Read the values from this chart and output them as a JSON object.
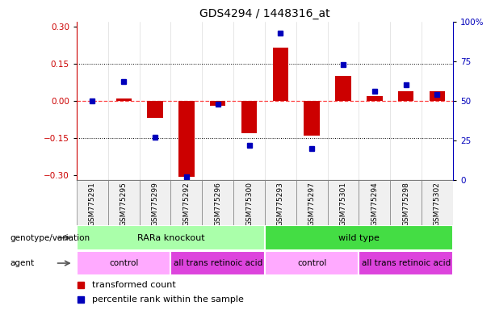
{
  "title": "GDS4294 / 1448316_at",
  "samples": [
    "GSM775291",
    "GSM775295",
    "GSM775299",
    "GSM775292",
    "GSM775296",
    "GSM775300",
    "GSM775293",
    "GSM775297",
    "GSM775301",
    "GSM775294",
    "GSM775298",
    "GSM775302"
  ],
  "red_bars": [
    0.0,
    0.01,
    -0.07,
    -0.305,
    -0.02,
    -0.13,
    0.215,
    -0.14,
    0.1,
    0.02,
    0.04,
    0.04
  ],
  "blue_dots_pct": [
    50,
    62,
    27,
    2,
    48,
    22,
    93,
    20,
    73,
    56,
    60,
    54
  ],
  "ylim_left": [
    -0.32,
    0.32
  ],
  "ylim_right": [
    0,
    105
  ],
  "yticks_left": [
    -0.3,
    -0.15,
    0.0,
    0.15,
    0.3
  ],
  "yticks_right": [
    0,
    25,
    50,
    75,
    100
  ],
  "ytick_labels_right": [
    "0",
    "25",
    "50",
    "75",
    "100%"
  ],
  "hlines_dotted": [
    0.15,
    -0.15
  ],
  "hline_zero_color": "#FF4444",
  "genotype_groups": [
    {
      "label": "RARa knockout",
      "start": 0,
      "end": 5,
      "color": "#AAFFAA"
    },
    {
      "label": "wild type",
      "start": 6,
      "end": 11,
      "color": "#44DD44"
    }
  ],
  "agent_groups": [
    {
      "label": "control",
      "start": 0,
      "end": 2,
      "color": "#FFAAFF"
    },
    {
      "label": "all trans retinoic acid",
      "start": 3,
      "end": 5,
      "color": "#DD44DD"
    },
    {
      "label": "control",
      "start": 6,
      "end": 8,
      "color": "#FFAAFF"
    },
    {
      "label": "all trans retinoic acid",
      "start": 9,
      "end": 11,
      "color": "#DD44DD"
    }
  ],
  "legend_red": "transformed count",
  "legend_blue": "percentile rank within the sample",
  "bar_color": "#CC0000",
  "dot_color": "#0000BB",
  "bar_width": 0.5,
  "left_axis_color": "#CC0000",
  "right_axis_color": "#0000BB",
  "bg_color": "#FFFFFF"
}
